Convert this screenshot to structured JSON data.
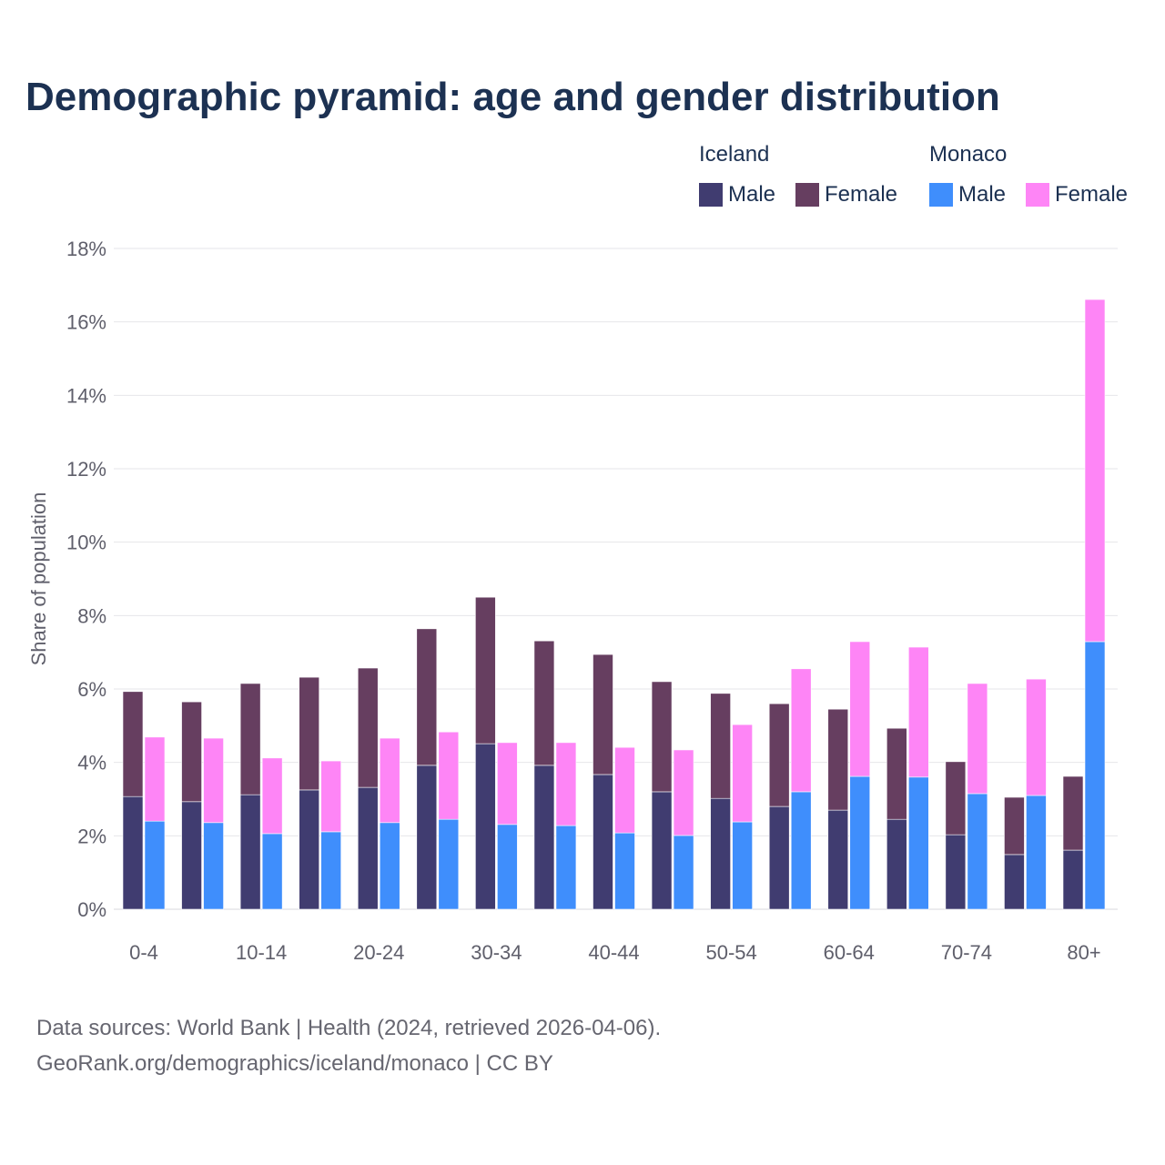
{
  "title": "Demographic pyramid: age and gender distribution",
  "legend": {
    "groups": [
      {
        "name": "Iceland",
        "items": [
          {
            "label": "Male",
            "color": "#403c70"
          },
          {
            "label": "Female",
            "color": "#663e60"
          }
        ]
      },
      {
        "name": "Monaco",
        "items": [
          {
            "label": "Male",
            "color": "#3f8efc"
          },
          {
            "label": "Female",
            "color": "#fe85f6"
          }
        ]
      }
    ]
  },
  "footer": {
    "line1": "Data sources: World Bank | Health (2024, retrieved 2026-04-06).",
    "line2": "GeoRank.org/demographics/iceland/monaco | CC BY"
  },
  "chart_data": {
    "type": "bar",
    "stacked": true,
    "title": "Demographic pyramid: age and gender distribution",
    "xlabel": "",
    "ylabel": "Share of population",
    "ylim": [
      0,
      18
    ],
    "yticks": [
      "0%",
      "2%",
      "4%",
      "6%",
      "8%",
      "10%",
      "12%",
      "14%",
      "16%",
      "18%"
    ],
    "xticks_shown": [
      "0-4",
      "10-14",
      "20-24",
      "30-34",
      "40-44",
      "50-54",
      "60-64",
      "70-74",
      "80+"
    ],
    "categories": [
      "0-4",
      "5-9",
      "10-14",
      "15-19",
      "20-24",
      "25-29",
      "30-34",
      "35-39",
      "40-44",
      "45-49",
      "50-54",
      "55-59",
      "60-64",
      "65-69",
      "70-74",
      "75-79",
      "80+"
    ],
    "grid": true,
    "legend_position": "top-right",
    "series": [
      {
        "name": "Iceland Male",
        "stack": "Iceland",
        "color": "#403c70",
        "values": [
          3.07,
          2.93,
          3.12,
          3.25,
          3.32,
          3.92,
          4.51,
          3.92,
          3.67,
          3.2,
          3.02,
          2.8,
          2.7,
          2.45,
          2.03,
          1.49,
          1.61
        ]
      },
      {
        "name": "Iceland Female",
        "stack": "Iceland",
        "color": "#663e60",
        "values": [
          2.86,
          2.72,
          3.03,
          3.07,
          3.25,
          3.72,
          3.99,
          3.39,
          3.27,
          3.0,
          2.86,
          2.8,
          2.75,
          2.48,
          1.99,
          1.56,
          2.01
        ]
      },
      {
        "name": "Monaco Male",
        "stack": "Monaco",
        "color": "#3f8efc",
        "values": [
          2.4,
          2.36,
          2.06,
          2.11,
          2.36,
          2.45,
          2.31,
          2.28,
          2.08,
          2.01,
          2.38,
          3.2,
          3.62,
          3.6,
          3.15,
          3.1,
          7.29
        ]
      },
      {
        "name": "Monaco Female",
        "stack": "Monaco",
        "color": "#fe85f6",
        "values": [
          2.29,
          2.3,
          2.06,
          1.93,
          2.3,
          2.38,
          2.23,
          2.26,
          2.33,
          2.33,
          2.65,
          3.35,
          3.67,
          3.54,
          3.0,
          3.17,
          9.32
        ]
      }
    ]
  }
}
